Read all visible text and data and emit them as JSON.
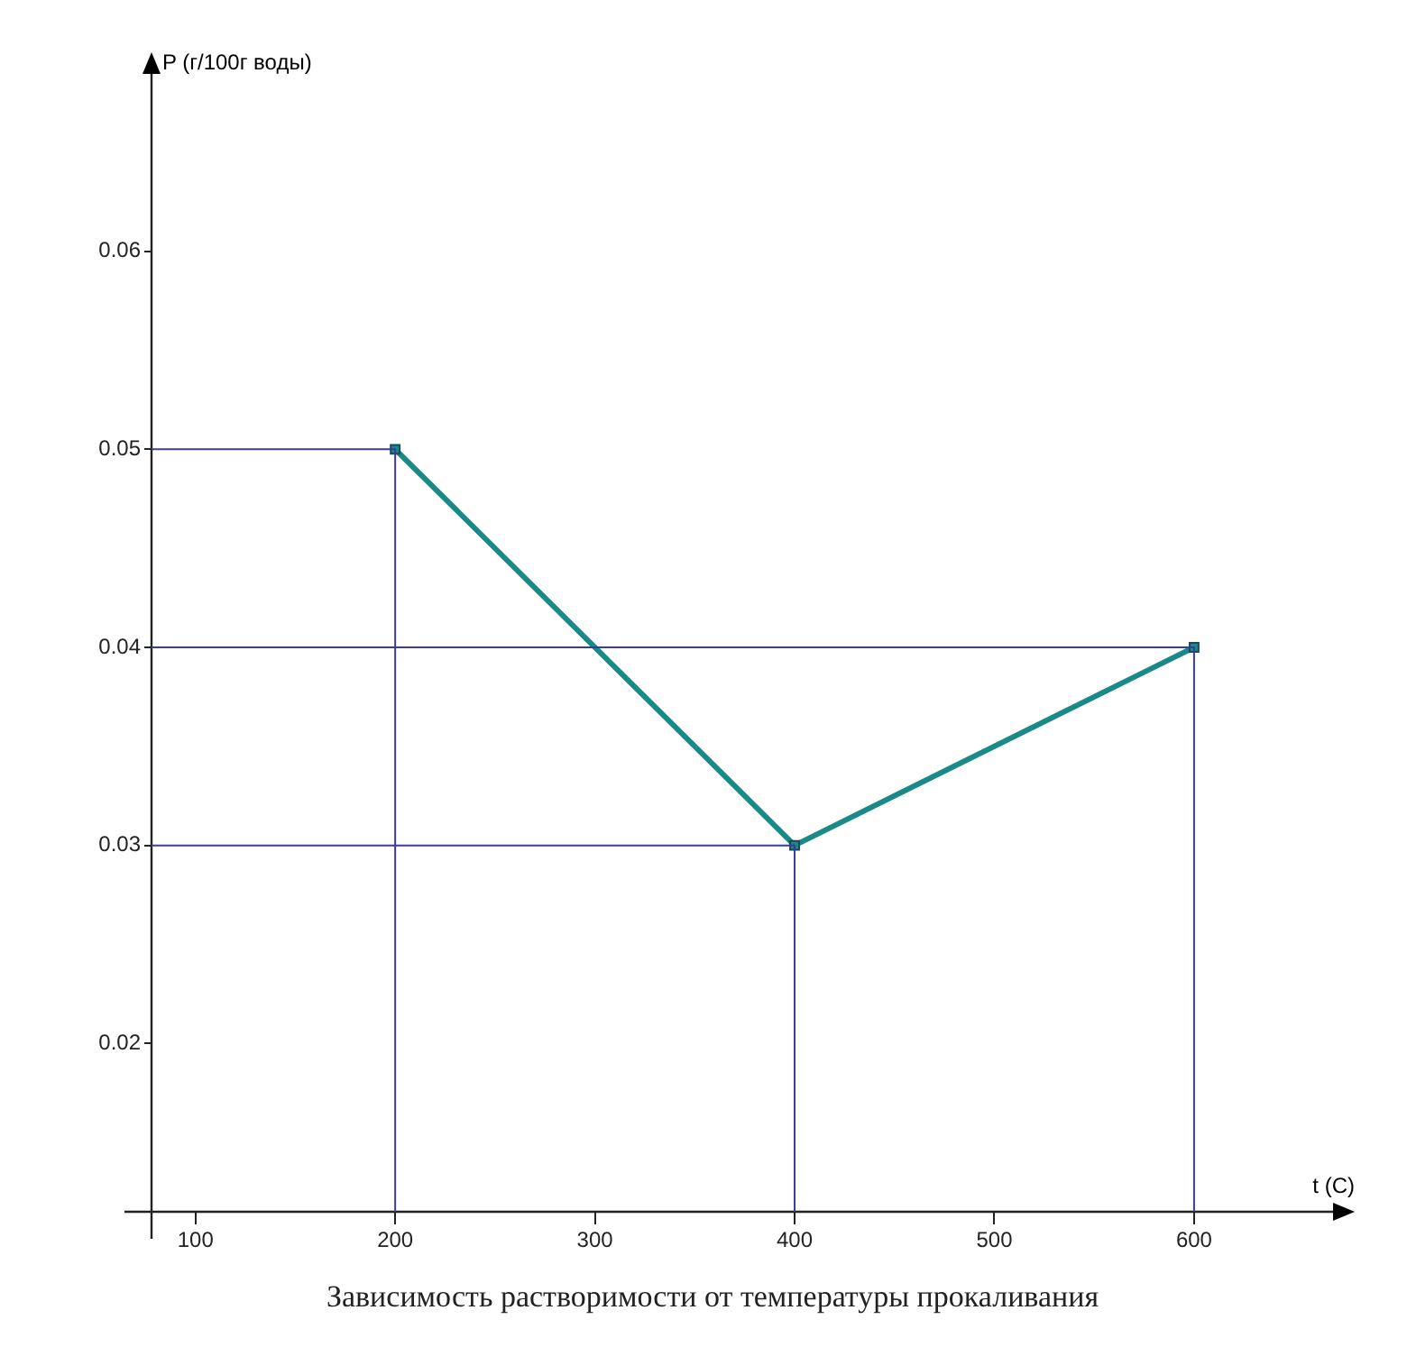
{
  "chart_data": {
    "type": "line",
    "title": "Зависимость растворимости от температуры прокаливания",
    "xlabel": "t (C)",
    "ylabel": "P (г/100г воды)",
    "x": [
      200,
      400,
      600
    ],
    "series": [
      {
        "type": "line",
        "color": "#3a3aa0",
        "marker": "none",
        "x": [
          78,
          200,
          200
        ],
        "values": [
          0.05,
          0.05,
          0.0115
        ]
      },
      {
        "type": "line",
        "color": "#3a3aa0",
        "marker": "none",
        "x": [
          78,
          400,
          400
        ],
        "values": [
          0.03,
          0.03,
          0.0115
        ]
      },
      {
        "type": "line",
        "color": "#3a3aa0",
        "marker": "none",
        "x": [
          78,
          600,
          600
        ],
        "values": [
          0.04,
          0.04,
          0.0115
        ]
      },
      {
        "color": "#1a8a88",
        "values": [
          0.05,
          0.03,
          0.04
        ]
      }
    ],
    "xlim": [
      78,
      675
    ],
    "xticks": [
      100,
      200,
      300,
      400,
      500,
      600
    ],
    "ylim": [
      0.0115,
      0.0695
    ],
    "yticks": [
      0.02,
      0.03,
      0.04,
      0.05,
      0.06
    ],
    "marker": "square",
    "line_style": "solid",
    "legend": false,
    "grid": false
  }
}
